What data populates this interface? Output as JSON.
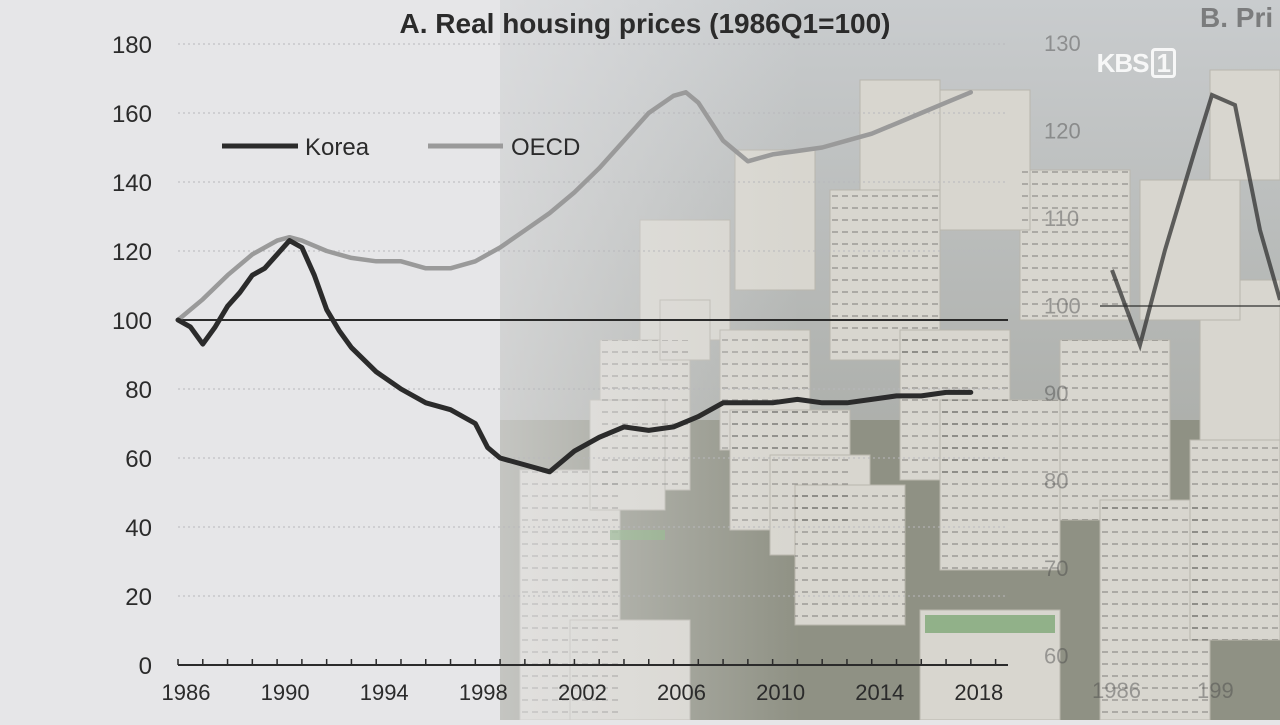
{
  "chart_data": [
    {
      "type": "line",
      "title": "A. Real housing prices (1986Q1=100)",
      "x_ticks": [
        "1986",
        "1990",
        "1994",
        "1998",
        "2002",
        "2006",
        "2010",
        "2014",
        "2018"
      ],
      "y_ticks": [
        "0",
        "20",
        "40",
        "60",
        "80",
        "100",
        "120",
        "140",
        "160",
        "180"
      ],
      "xlim": [
        1986,
        2019.5
      ],
      "ylim": [
        0,
        180
      ],
      "reference_line": 100,
      "legend_position": "top-left",
      "series": [
        {
          "name": "Korea",
          "color": "#2b2b2b",
          "x": [
            1986,
            1986.5,
            1987,
            1987.5,
            1988,
            1988.5,
            1989,
            1989.5,
            1990,
            1990.5,
            1991,
            1991.5,
            1992,
            1992.5,
            1993,
            1994,
            1995,
            1996,
            1997,
            1998,
            1998.5,
            1999,
            2000,
            2001,
            2002,
            2003,
            2004,
            2005,
            2006,
            2007,
            2008,
            2009,
            2010,
            2011,
            2012,
            2013,
            2014,
            2015,
            2016,
            2017,
            2018
          ],
          "values": [
            100,
            98,
            93,
            98,
            104,
            108,
            113,
            115,
            119,
            123,
            121,
            113,
            103,
            97,
            92,
            85,
            80,
            76,
            74,
            70,
            63,
            60,
            58,
            56,
            62,
            66,
            69,
            68,
            69,
            72,
            76,
            76,
            76,
            77,
            76,
            76,
            77,
            78,
            78,
            79,
            79
          ]
        },
        {
          "name": "OECD",
          "color": "#9a9a9a",
          "x": [
            1986,
            1987,
            1988,
            1989,
            1990,
            1990.5,
            1991,
            1992,
            1993,
            1994,
            1995,
            1996,
            1997,
            1998,
            1999,
            2000,
            2001,
            2002,
            2003,
            2004,
            2005,
            2006,
            2006.5,
            2007,
            2008,
            2009,
            2010,
            2011,
            2012,
            2013,
            2014,
            2015,
            2016,
            2017,
            2018
          ],
          "values": [
            100,
            106,
            113,
            119,
            123,
            124,
            123,
            120,
            118,
            117,
            117,
            115,
            115,
            117,
            121,
            126,
            131,
            137,
            144,
            152,
            160,
            165,
            166,
            163,
            152,
            146,
            148,
            149,
            150,
            152,
            154,
            157,
            160,
            163,
            166
          ]
        }
      ]
    },
    {
      "type": "line",
      "title": "B. Pri",
      "y_ticks": [
        "130",
        "120",
        "110",
        "100",
        "90",
        "80",
        "70",
        "60"
      ],
      "x_ticks": [
        "1986",
        "199"
      ]
    }
  ],
  "watermark": {
    "main": "KBS",
    "box": "1"
  }
}
